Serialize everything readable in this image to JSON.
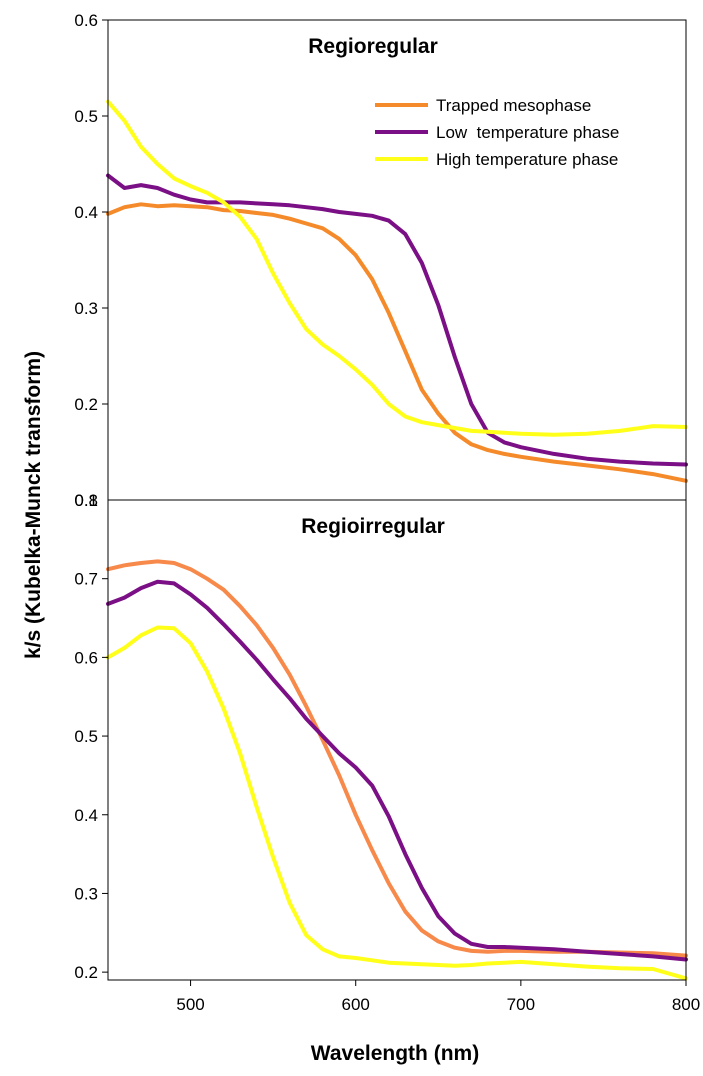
{
  "chart_data": {
    "type": "line",
    "xlabel": "Wavelength (nm)",
    "ylabel": "k/s (Kubelka-Munck transform)",
    "xlim": [
      450,
      800
    ],
    "xticks": [
      500,
      600,
      700,
      800
    ],
    "colors": {
      "Trapped mesophase": "#f58a2a",
      "Low  temperature phase": "#7b0f86",
      "High temperature phase": "#ffff1a",
      "Trapped mesophase (Regioirregular)": "#f7894a"
    },
    "legend": {
      "placement": "top-right",
      "entries": [
        "Trapped mesophase",
        "Low  temperature phase",
        "High temperature phase"
      ]
    },
    "panels": [
      {
        "title": "Regioregular",
        "ylim": [
          0.1,
          0.6
        ],
        "yticks": [
          0.2,
          0.3,
          0.4,
          0.5,
          0.6
        ],
        "ytick_labels": [
          "0.2",
          "0.3",
          "0.4",
          "0.5",
          "0.6"
        ],
        "bottom_label": "0.1",
        "series": [
          {
            "name": "Trapped mesophase",
            "x": [
              450,
              460,
              470,
              480,
              490,
              500,
              510,
              520,
              530,
              540,
              550,
              560,
              570,
              580,
              590,
              600,
              610,
              620,
              630,
              640,
              650,
              660,
              670,
              680,
              690,
              700,
              720,
              740,
              760,
              780,
              800
            ],
            "y": [
              0.398,
              0.405,
              0.408,
              0.406,
              0.407,
              0.406,
              0.405,
              0.402,
              0.401,
              0.399,
              0.397,
              0.393,
              0.388,
              0.383,
              0.372,
              0.355,
              0.33,
              0.295,
              0.255,
              0.215,
              0.19,
              0.17,
              0.158,
              0.152,
              0.148,
              0.145,
              0.14,
              0.136,
              0.132,
              0.127,
              0.12
            ]
          },
          {
            "name": "Low  temperature phase",
            "x": [
              450,
              460,
              470,
              480,
              490,
              500,
              510,
              520,
              530,
              540,
              550,
              560,
              570,
              580,
              590,
              600,
              610,
              620,
              630,
              640,
              650,
              660,
              670,
              680,
              690,
              700,
              720,
              740,
              760,
              780,
              800
            ],
            "y": [
              0.438,
              0.425,
              0.428,
              0.425,
              0.418,
              0.413,
              0.41,
              0.41,
              0.41,
              0.409,
              0.408,
              0.407,
              0.405,
              0.403,
              0.4,
              0.398,
              0.396,
              0.391,
              0.377,
              0.347,
              0.303,
              0.249,
              0.2,
              0.17,
              0.16,
              0.155,
              0.148,
              0.143,
              0.14,
              0.138,
              0.137
            ]
          },
          {
            "name": "High temperature phase",
            "x": [
              450,
              460,
              470,
              480,
              490,
              500,
              510,
              520,
              530,
              540,
              550,
              560,
              570,
              580,
              590,
              600,
              610,
              620,
              630,
              640,
              650,
              660,
              670,
              680,
              690,
              700,
              720,
              740,
              760,
              780,
              800
            ],
            "y": [
              0.515,
              0.495,
              0.468,
              0.45,
              0.435,
              0.427,
              0.42,
              0.41,
              0.395,
              0.372,
              0.336,
              0.305,
              0.278,
              0.262,
              0.25,
              0.236,
              0.22,
              0.2,
              0.187,
              0.181,
              0.178,
              0.175,
              0.172,
              0.171,
              0.17,
              0.169,
              0.168,
              0.169,
              0.172,
              0.177,
              0.176
            ]
          }
        ]
      },
      {
        "title": "Regioirregular",
        "ylim": [
          0.19,
          0.8
        ],
        "yticks": [
          0.2,
          0.3,
          0.4,
          0.5,
          0.6,
          0.7
        ],
        "ytick_labels": [
          "0.2",
          "0.3",
          "0.4",
          "0.5",
          "0.6",
          "0.7"
        ],
        "top_label": "0.8",
        "series": [
          {
            "name": "Trapped mesophase",
            "x": [
              450,
              460,
              470,
              480,
              490,
              500,
              510,
              520,
              530,
              540,
              550,
              560,
              570,
              580,
              590,
              600,
              610,
              620,
              630,
              640,
              650,
              660,
              670,
              680,
              690,
              700,
              720,
              740,
              760,
              780,
              800
            ],
            "y": [
              0.712,
              0.717,
              0.72,
              0.722,
              0.72,
              0.712,
              0.7,
              0.686,
              0.665,
              0.641,
              0.612,
              0.578,
              0.538,
              0.495,
              0.45,
              0.4,
              0.355,
              0.313,
              0.277,
              0.253,
              0.239,
              0.231,
              0.227,
              0.226,
              0.227,
              0.227,
              0.226,
              0.226,
              0.225,
              0.224,
              0.221
            ]
          },
          {
            "name": "Low  temperature phase",
            "x": [
              450,
              460,
              470,
              480,
              490,
              500,
              510,
              520,
              530,
              540,
              550,
              560,
              570,
              580,
              590,
              600,
              610,
              620,
              630,
              640,
              650,
              660,
              670,
              680,
              690,
              700,
              720,
              740,
              760,
              780,
              800
            ],
            "y": [
              0.668,
              0.676,
              0.688,
              0.696,
              0.694,
              0.68,
              0.663,
              0.642,
              0.62,
              0.597,
              0.572,
              0.548,
              0.522,
              0.5,
              0.478,
              0.46,
              0.437,
              0.398,
              0.35,
              0.307,
              0.271,
              0.249,
              0.236,
              0.232,
              0.232,
              0.231,
              0.229,
              0.226,
              0.223,
              0.22,
              0.216
            ]
          },
          {
            "name": "High temperature phase",
            "x": [
              450,
              460,
              470,
              480,
              490,
              500,
              510,
              520,
              530,
              540,
              550,
              560,
              570,
              580,
              590,
              600,
              610,
              620,
              630,
              640,
              650,
              660,
              670,
              680,
              690,
              700,
              720,
              740,
              760,
              780,
              800
            ],
            "y": [
              0.6,
              0.612,
              0.628,
              0.638,
              0.637,
              0.618,
              0.582,
              0.535,
              0.478,
              0.41,
              0.346,
              0.288,
              0.247,
              0.229,
              0.22,
              0.218,
              0.215,
              0.212,
              0.211,
              0.21,
              0.209,
              0.208,
              0.209,
              0.211,
              0.212,
              0.213,
              0.21,
              0.207,
              0.205,
              0.204,
              0.192
            ]
          }
        ]
      }
    ]
  }
}
